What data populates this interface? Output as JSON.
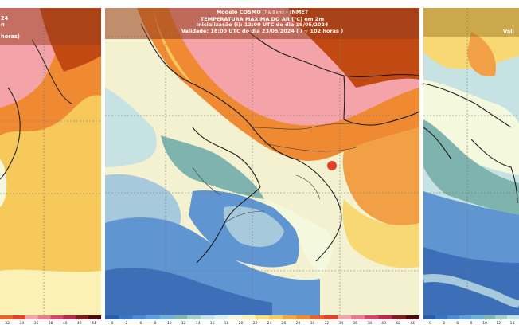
{
  "center_panel": {
    "header": {
      "model": "Modelo COSMO",
      "model_suffix": "[7 & 8 km]",
      "org": "INMET",
      "variable": "TEMPERATURA MÁXIMA DO AR (°C) em 2m",
      "init": "Inicialização (i): 12:00 UTC do dia 19/05/2024",
      "valid": "Validade: 18:00 UTC do dia 23/05/2024 ( i + 102 horas )"
    },
    "colorbar": {
      "ticks": [
        "0",
        "2",
        "6",
        "8",
        "10",
        "12",
        "14",
        "16",
        "18",
        "20",
        "22",
        "24",
        "26",
        "28",
        "30",
        "32",
        "34",
        "36",
        "38",
        "40",
        "42",
        "44"
      ],
      "colors": [
        "#2b5ca8",
        "#3c74c4",
        "#4d8ad3",
        "#5f9edb",
        "#6fb0d8",
        "#7fb6ad",
        "#a5cfc2",
        "#c6e2e2",
        "#ddf0f0",
        "#f4f8dc",
        "#fbf1b4",
        "#f8df7a",
        "#f7c85a",
        "#f3a642",
        "#ef8a33",
        "#e8642a",
        "#e2432b",
        "#f4a3a8",
        "#ec7a8e",
        "#d8456b",
        "#b82b4c",
        "#7f1e1e",
        "#4a0c10"
      ]
    }
  },
  "left_panel": {
    "header_lines": [
      "24",
      "n",
      "",
      "horas)"
    ],
    "colorbar_ticks": [
      "32",
      "34",
      "36",
      "38",
      "40",
      "42",
      "44"
    ]
  },
  "right_panel": {
    "header_fragment": "Vali",
    "colorbar_ticks": [
      "0",
      "2",
      "6",
      "8",
      "10",
      "12",
      "14"
    ]
  },
  "colors": {
    "hot_dark": "#c24a12",
    "hot_pink": "#f08fa0",
    "warm_orange": "#f2a045",
    "warm_yellow": "#f7d873",
    "cream": "#f3f1cf",
    "teal": "#7fb3ad",
    "light_blue": "#a7c9dc",
    "blue": "#5f95d1",
    "deep_blue": "#3d6fb8"
  }
}
